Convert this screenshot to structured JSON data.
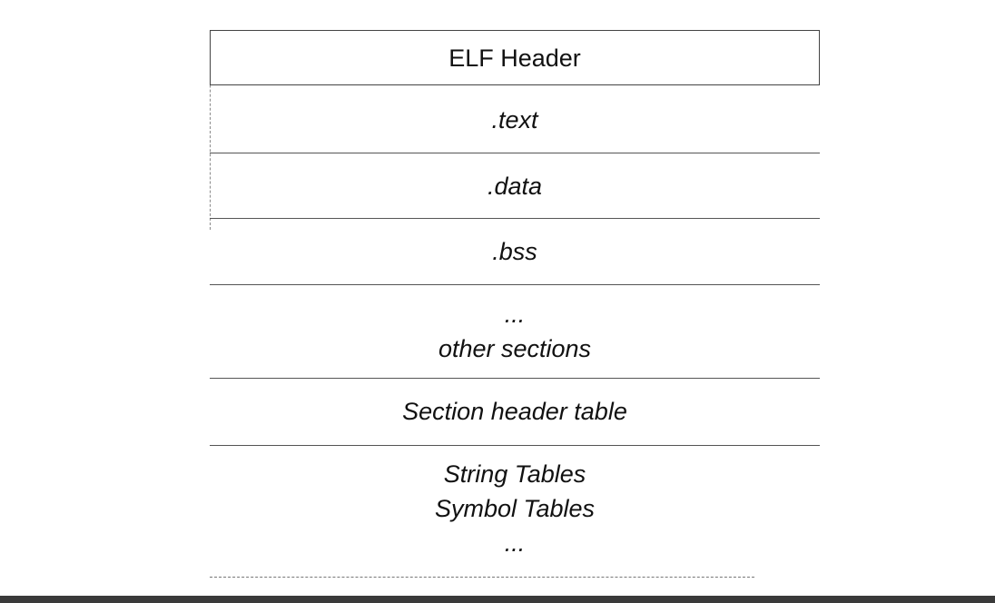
{
  "diagram": {
    "elf_header": "ELF Header",
    "text_section": ".text",
    "data_section": ".data",
    "bss_section": ".bss",
    "other_ellipsis": "...",
    "other_sections": "other sections",
    "section_header_table": "Section header table",
    "string_tables": "String Tables",
    "symbol_tables": "Symbol Tables",
    "tables_ellipsis": "..."
  }
}
